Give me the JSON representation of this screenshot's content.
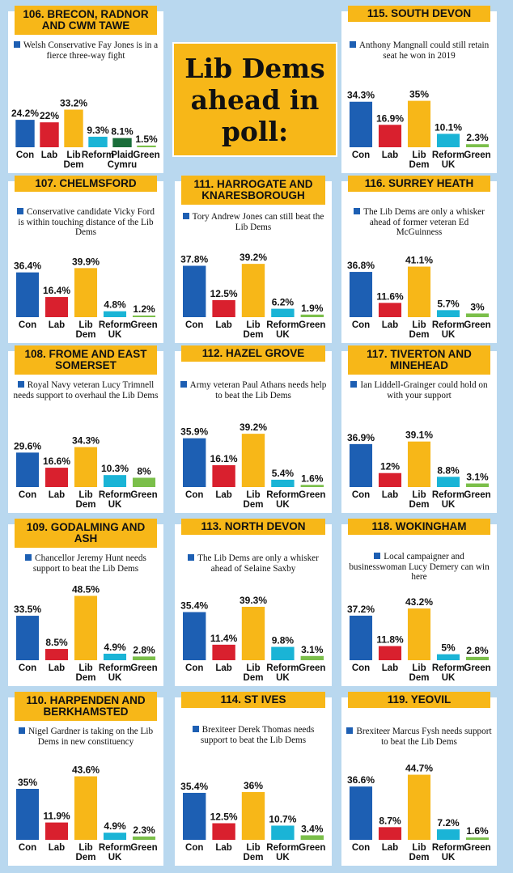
{
  "headline": [
    "Lib Dems",
    "ahead in",
    "poll:"
  ],
  "colors": {
    "Con": "#1d5fb3",
    "Lab": "#d9202e",
    "Lib Dem": "#f7b718",
    "Reform UK": "#1ab4d6",
    "Plaid Cymru": "#1a6e3a",
    "Green": "#7bbf4a"
  },
  "chart_data": [
    {
      "type": "bar",
      "title": "106. BRECON, RADNOR AND CWM TAWE",
      "subtitle": "Welsh Conservative Fay Jones is in a fierce three-way fight",
      "categories": [
        "Con",
        "Lab",
        "Lib Dem",
        "Reform",
        "Plaid Cymru",
        "Green"
      ],
      "values": [
        24.2,
        22,
        33.2,
        9.3,
        8.1,
        1.5
      ],
      "labels": [
        "24.2%",
        "22%",
        "33.2%",
        "9.3%",
        "8.1%",
        "1.5%"
      ]
    },
    {
      "type": "bar",
      "title": "115. SOUTH DEVON",
      "subtitle": "Anthony Mangnall could still retain seat he won in 2019",
      "categories": [
        "Con",
        "Lab",
        "Lib Dem",
        "Reform UK",
        "Green"
      ],
      "values": [
        34.3,
        16.9,
        35,
        10.1,
        2.3
      ],
      "labels": [
        "34.3%",
        "16.9%",
        "35%",
        "10.1%",
        "2.3%"
      ]
    },
    {
      "type": "bar",
      "title": "107. CHELMSFORD",
      "subtitle": "Conservative candidate Vicky Ford is within touching distance of the Lib Dems",
      "categories": [
        "Con",
        "Lab",
        "Lib Dem",
        "Reform UK",
        "Green"
      ],
      "values": [
        36.4,
        16.4,
        39.9,
        4.8,
        1.2
      ],
      "labels": [
        "36.4%",
        "16.4%",
        "39.9%",
        "4.8%",
        "1.2%"
      ]
    },
    {
      "type": "bar",
      "title": "111. HARROGATE AND KNARESBOROUGH",
      "subtitle": "Tory Andrew Jones can still beat the Lib Dems",
      "categories": [
        "Con",
        "Lab",
        "Lib Dem",
        "Reform UK",
        "Green"
      ],
      "values": [
        37.8,
        12.5,
        39.2,
        6.2,
        1.9
      ],
      "labels": [
        "37.8%",
        "12.5%",
        "39.2%",
        "6.2%",
        "1.9%"
      ]
    },
    {
      "type": "bar",
      "title": "116. SURREY HEATH",
      "subtitle": "The Lib Dems are only a whisker ahead of former veteran Ed McGuinness",
      "categories": [
        "Con",
        "Lab",
        "Lib Dem",
        "Reform UK",
        "Green"
      ],
      "values": [
        36.8,
        11.6,
        41.1,
        5.7,
        3
      ],
      "labels": [
        "36.8%",
        "11.6%",
        "41.1%",
        "5.7%",
        "3%"
      ]
    },
    {
      "type": "bar",
      "title": "108. FROME AND EAST SOMERSET",
      "subtitle": "Royal Navy veteran Lucy Trimnell needs support to overhaul the Lib Dems",
      "categories": [
        "Con",
        "Lab",
        "Lib Dem",
        "Reform UK",
        "Green"
      ],
      "values": [
        29.6,
        16.6,
        34.3,
        10.3,
        8
      ],
      "labels": [
        "29.6%",
        "16.6%",
        "34.3%",
        "10.3%",
        "8%"
      ]
    },
    {
      "type": "bar",
      "title": "112. HAZEL GROVE",
      "subtitle": "Army veteran Paul Athans needs help to beat the Lib Dems",
      "categories": [
        "Con",
        "Lab",
        "Lib Dem",
        "Reform UK",
        "Green"
      ],
      "values": [
        35.9,
        16.1,
        39.2,
        5.4,
        1.6
      ],
      "labels": [
        "35.9%",
        "16.1%",
        "39.2%",
        "5.4%",
        "1.6%"
      ]
    },
    {
      "type": "bar",
      "title": "117. TIVERTON AND MINEHEAD",
      "subtitle": "Ian Liddell-Grainger could hold on with your support",
      "categories": [
        "Con",
        "Lab",
        "Lib Dem",
        "Reform UK",
        "Green"
      ],
      "values": [
        36.9,
        12,
        39.1,
        8.8,
        3.1
      ],
      "labels": [
        "36.9%",
        "12%",
        "39.1%",
        "8.8%",
        "3.1%"
      ]
    },
    {
      "type": "bar",
      "title": "109. GODALMING AND ASH",
      "subtitle": "Chancellor Jeremy Hunt needs support to beat the Lib Dems",
      "categories": [
        "Con",
        "Lab",
        "Lib Dem",
        "Reform UK",
        "Green"
      ],
      "values": [
        33.5,
        8.5,
        48.5,
        4.9,
        2.8
      ],
      "labels": [
        "33.5%",
        "8.5%",
        "48.5%",
        "4.9%",
        "2.8%"
      ]
    },
    {
      "type": "bar",
      "title": "113. NORTH DEVON",
      "subtitle": "The Lib Dems are only a whisker ahead of Selaine Saxby",
      "categories": [
        "Con",
        "Lab",
        "Lib Dem",
        "Reform UK",
        "Green"
      ],
      "values": [
        35.4,
        11.4,
        39.3,
        9.8,
        3.1
      ],
      "labels": [
        "35.4%",
        "11.4%",
        "39.3%",
        "9.8%",
        "3.1%"
      ]
    },
    {
      "type": "bar",
      "title": "118. WOKINGHAM",
      "subtitle": "Local campaigner and businesswoman Lucy Demery can win here",
      "categories": [
        "Con",
        "Lab",
        "Lib Dem",
        "Reform UK",
        "Green"
      ],
      "values": [
        37.2,
        11.8,
        43.2,
        5,
        2.8
      ],
      "labels": [
        "37.2%",
        "11.8%",
        "43.2%",
        "5%",
        "2.8%"
      ]
    },
    {
      "type": "bar",
      "title": "110. HARPENDEN AND BERKHAMSTED",
      "subtitle": "Nigel Gardner is taking on the Lib Dems in new constituency",
      "categories": [
        "Con",
        "Lab",
        "Lib Dem",
        "Reform UK",
        "Green"
      ],
      "values": [
        35,
        11.9,
        43.6,
        4.9,
        2.3
      ],
      "labels": [
        "35%",
        "11.9%",
        "43.6%",
        "4.9%",
        "2.3%"
      ]
    },
    {
      "type": "bar",
      "title": "114. ST IVES",
      "subtitle": "Brexiteer Derek Thomas needs support to beat the Lib Dems",
      "categories": [
        "Con",
        "Lab",
        "Lib Dem",
        "Reform UK",
        "Green"
      ],
      "values": [
        35.4,
        12.5,
        36,
        10.7,
        3.4
      ],
      "labels": [
        "35.4%",
        "12.5%",
        "36%",
        "10.7%",
        "3.4%"
      ]
    },
    {
      "type": "bar",
      "title": "119. YEOVIL",
      "subtitle": "Brexiteer Marcus Fysh needs support to beat the Lib Dems",
      "categories": [
        "Con",
        "Lab",
        "Lib Dem",
        "Reform UK",
        "Green"
      ],
      "values": [
        36.6,
        8.7,
        44.7,
        7.2,
        1.6
      ],
      "labels": [
        "36.6%",
        "8.7%",
        "44.7%",
        "7.2%",
        "1.6%"
      ]
    }
  ]
}
